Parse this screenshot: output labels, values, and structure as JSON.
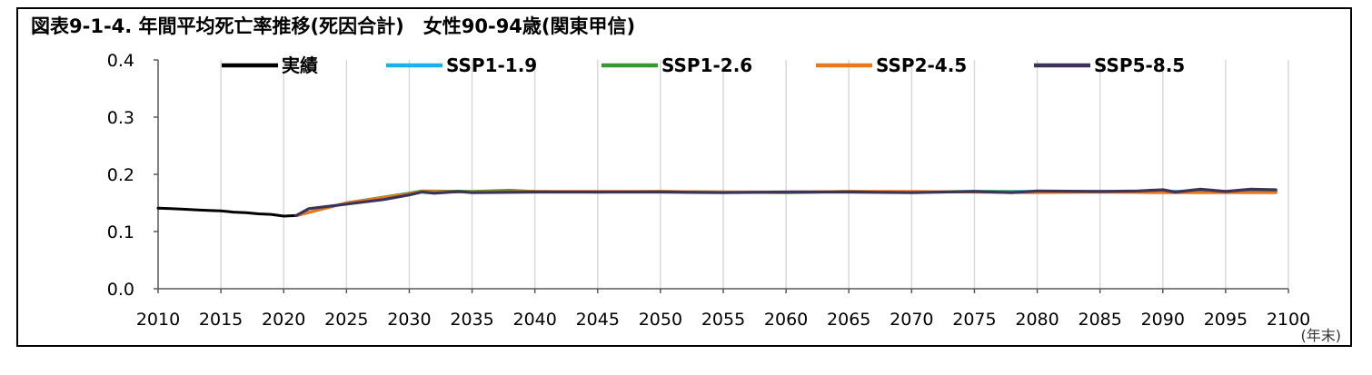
{
  "chart_data": {
    "type": "line",
    "title": "図表9-1-4. 年間平均死亡率推移(死因合計)　女性90-94歳(関東甲信)",
    "xlabel": "(年末)",
    "ylabel": "",
    "xlim": [
      2010,
      2100
    ],
    "ylim": [
      0,
      0.4
    ],
    "x_ticks": [
      "2010",
      "2015",
      "2020",
      "2025",
      "2030",
      "2035",
      "2040",
      "2045",
      "2050",
      "2055",
      "2060",
      "2065",
      "2070",
      "2075",
      "2080",
      "2085",
      "2090",
      "2095",
      "2100"
    ],
    "y_ticks": [
      "0.0",
      "0.1",
      "0.2",
      "0.3",
      "0.4"
    ],
    "grid": "vertical",
    "legend_position": "top",
    "series": [
      {
        "name": "実績",
        "color": "#000000",
        "x": [
          2010,
          2011,
          2012,
          2013,
          2014,
          2015,
          2016,
          2017,
          2018,
          2019,
          2020,
          2021
        ],
        "y": [
          0.141,
          0.14,
          0.139,
          0.138,
          0.137,
          0.136,
          0.134,
          0.133,
          0.131,
          0.13,
          0.127,
          0.128
        ]
      },
      {
        "name": "SSP1-1.9",
        "color": "#1ab0e8",
        "x": [
          2021,
          2025,
          2030,
          2031,
          2035,
          2040,
          2045,
          2050,
          2055,
          2060,
          2065,
          2070,
          2075,
          2080,
          2085,
          2090,
          2095,
          2099
        ],
        "y": [
          0.128,
          0.15,
          0.167,
          0.17,
          0.169,
          0.17,
          0.169,
          0.17,
          0.169,
          0.169,
          0.17,
          0.169,
          0.17,
          0.17,
          0.169,
          0.17,
          0.17,
          0.171
        ]
      },
      {
        "name": "SSP1-2.6",
        "color": "#339933",
        "x": [
          2021,
          2025,
          2030,
          2031,
          2035,
          2038,
          2040,
          2045,
          2050,
          2055,
          2060,
          2065,
          2070,
          2075,
          2080,
          2085,
          2090,
          2095,
          2099
        ],
        "y": [
          0.128,
          0.15,
          0.167,
          0.171,
          0.17,
          0.172,
          0.17,
          0.169,
          0.17,
          0.169,
          0.168,
          0.17,
          0.169,
          0.17,
          0.169,
          0.17,
          0.169,
          0.17,
          0.17
        ]
      },
      {
        "name": "SSP2-4.5",
        "color": "#e87722",
        "x": [
          2021,
          2025,
          2030,
          2031,
          2035,
          2040,
          2045,
          2050,
          2055,
          2060,
          2065,
          2070,
          2075,
          2080,
          2085,
          2090,
          2095,
          2099
        ],
        "y": [
          0.128,
          0.15,
          0.166,
          0.17,
          0.169,
          0.17,
          0.17,
          0.17,
          0.169,
          0.169,
          0.17,
          0.17,
          0.169,
          0.168,
          0.169,
          0.168,
          0.168,
          0.168
        ]
      },
      {
        "name": "SSP5-8.5",
        "color": "#3b3458",
        "x": [
          2021,
          2022,
          2025,
          2028,
          2030,
          2031,
          2032,
          2034,
          2035,
          2040,
          2045,
          2050,
          2055,
          2060,
          2065,
          2070,
          2075,
          2078,
          2080,
          2085,
          2088,
          2090,
          2091,
          2093,
          2095,
          2097,
          2099
        ],
        "y": [
          0.128,
          0.14,
          0.148,
          0.156,
          0.164,
          0.169,
          0.167,
          0.17,
          0.168,
          0.169,
          0.169,
          0.169,
          0.168,
          0.169,
          0.169,
          0.168,
          0.17,
          0.168,
          0.171,
          0.17,
          0.171,
          0.173,
          0.169,
          0.174,
          0.17,
          0.174,
          0.173
        ]
      }
    ]
  }
}
